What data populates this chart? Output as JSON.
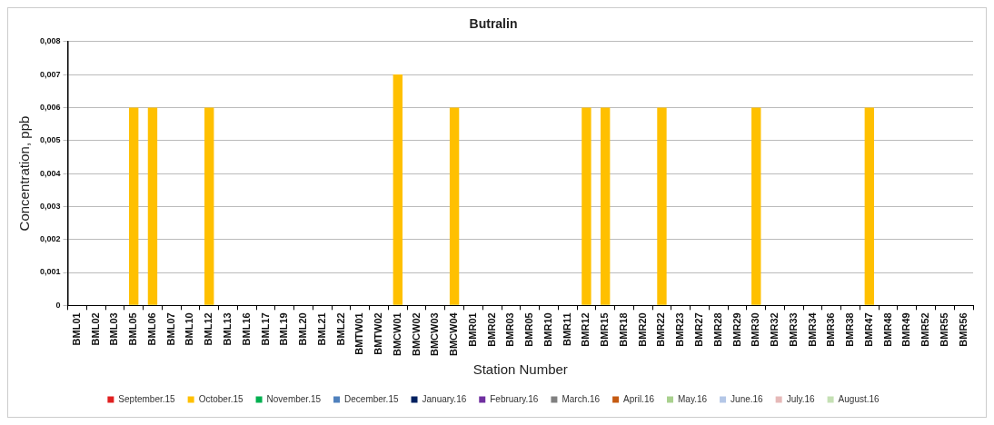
{
  "chart_data": {
    "type": "bar",
    "title": "Butralin",
    "xlabel": "Station Number",
    "ylabel": "Concentration, ppb",
    "categories": [
      "BML01",
      "BML02",
      "BML03",
      "BML05",
      "BML06",
      "BML07",
      "BML10",
      "BML12",
      "BML13",
      "BML16",
      "BML17",
      "BML19",
      "BML20",
      "BML21",
      "BML22",
      "BMTW01",
      "BMTW02",
      "BMCW01",
      "BMCW02",
      "BMCW03",
      "BMCW04",
      "BMR01",
      "BMR02",
      "BMR03",
      "BMR05",
      "BMR10",
      "BMR11",
      "BMR12",
      "BMR15",
      "BMR18",
      "BMR20",
      "BMR22",
      "BMR23",
      "BMR27",
      "BMR28",
      "BMR29",
      "BMR30",
      "BMR32",
      "BMR33",
      "BMR34",
      "BMR36",
      "BMR38",
      "BMR47",
      "BMR48",
      "BMR49",
      "BMR52",
      "BMR55",
      "BMR56"
    ],
    "series": [
      {
        "name": "September.15",
        "color": "#e02020",
        "values": [
          null,
          null,
          null,
          null,
          null,
          null,
          null,
          null,
          null,
          null,
          null,
          null,
          null,
          null,
          null,
          null,
          null,
          null,
          null,
          null,
          null,
          null,
          null,
          null,
          null,
          null,
          null,
          null,
          null,
          null,
          null,
          null,
          null,
          null,
          null,
          null,
          null,
          null,
          null,
          null,
          null,
          null,
          null,
          null,
          null,
          null,
          null,
          null
        ]
      },
      {
        "name": "October.15",
        "color": "#ffc000",
        "values": [
          null,
          null,
          null,
          0.006,
          0.006,
          null,
          null,
          0.006,
          null,
          null,
          null,
          null,
          null,
          null,
          null,
          null,
          null,
          0.007,
          null,
          null,
          0.006,
          null,
          null,
          null,
          null,
          null,
          null,
          0.006,
          0.006,
          null,
          null,
          0.006,
          null,
          null,
          null,
          null,
          0.006,
          null,
          null,
          null,
          null,
          null,
          0.006,
          null,
          null,
          null,
          null,
          null
        ]
      },
      {
        "name": "November.15",
        "color": "#00b050",
        "values": [
          null,
          null,
          null,
          null,
          null,
          null,
          null,
          null,
          null,
          null,
          null,
          null,
          null,
          null,
          null,
          null,
          null,
          null,
          null,
          null,
          null,
          null,
          null,
          null,
          null,
          null,
          null,
          null,
          null,
          null,
          null,
          null,
          null,
          null,
          null,
          null,
          null,
          null,
          null,
          null,
          null,
          null,
          null,
          null,
          null,
          null,
          null,
          null
        ]
      },
      {
        "name": "December.15",
        "color": "#4f81bd",
        "values": [
          null,
          null,
          null,
          null,
          null,
          null,
          null,
          null,
          null,
          null,
          null,
          null,
          null,
          null,
          null,
          null,
          null,
          null,
          null,
          null,
          null,
          null,
          null,
          null,
          null,
          null,
          null,
          null,
          null,
          null,
          null,
          null,
          null,
          null,
          null,
          null,
          null,
          null,
          null,
          null,
          null,
          null,
          null,
          null,
          null,
          null,
          null,
          null
        ]
      },
      {
        "name": "January.16",
        "color": "#002060",
        "values": [
          null,
          null,
          null,
          null,
          null,
          null,
          null,
          null,
          null,
          null,
          null,
          null,
          null,
          null,
          null,
          null,
          null,
          null,
          null,
          null,
          null,
          null,
          null,
          null,
          null,
          null,
          null,
          null,
          null,
          null,
          null,
          null,
          null,
          null,
          null,
          null,
          null,
          null,
          null,
          null,
          null,
          null,
          null,
          null,
          null,
          null,
          null,
          null
        ]
      },
      {
        "name": "February.16",
        "color": "#7030a0",
        "values": [
          null,
          null,
          null,
          null,
          null,
          null,
          null,
          null,
          null,
          null,
          null,
          null,
          null,
          null,
          null,
          null,
          null,
          null,
          null,
          null,
          null,
          null,
          null,
          null,
          null,
          null,
          null,
          null,
          null,
          null,
          null,
          null,
          null,
          null,
          null,
          null,
          null,
          null,
          null,
          null,
          null,
          null,
          null,
          null,
          null,
          null,
          null,
          null
        ]
      },
      {
        "name": "March.16",
        "color": "#808080",
        "values": [
          null,
          null,
          null,
          null,
          null,
          null,
          null,
          null,
          null,
          null,
          null,
          null,
          null,
          null,
          null,
          null,
          null,
          null,
          null,
          null,
          null,
          null,
          null,
          null,
          null,
          null,
          null,
          null,
          null,
          null,
          null,
          null,
          null,
          null,
          null,
          null,
          null,
          null,
          null,
          null,
          null,
          null,
          null,
          null,
          null,
          null,
          null,
          null
        ]
      },
      {
        "name": "April.16",
        "color": "#c55a11",
        "values": [
          null,
          null,
          null,
          null,
          null,
          null,
          null,
          null,
          null,
          null,
          null,
          null,
          null,
          null,
          null,
          null,
          null,
          null,
          null,
          null,
          null,
          null,
          null,
          null,
          null,
          null,
          null,
          null,
          null,
          null,
          null,
          null,
          null,
          null,
          null,
          null,
          null,
          null,
          null,
          null,
          null,
          null,
          null,
          null,
          null,
          null,
          null,
          null
        ]
      },
      {
        "name": "May.16",
        "color": "#a9d18e",
        "values": [
          null,
          null,
          null,
          null,
          null,
          null,
          null,
          null,
          null,
          null,
          null,
          null,
          null,
          null,
          null,
          null,
          null,
          null,
          null,
          null,
          null,
          null,
          null,
          null,
          null,
          null,
          null,
          null,
          null,
          null,
          null,
          null,
          null,
          null,
          null,
          null,
          null,
          null,
          null,
          null,
          null,
          null,
          null,
          null,
          null,
          null,
          null,
          null
        ]
      },
      {
        "name": "June.16",
        "color": "#b4c7e7",
        "values": [
          null,
          null,
          null,
          null,
          null,
          null,
          null,
          null,
          null,
          null,
          null,
          null,
          null,
          null,
          null,
          null,
          null,
          null,
          null,
          null,
          null,
          null,
          null,
          null,
          null,
          null,
          null,
          null,
          null,
          null,
          null,
          null,
          null,
          null,
          null,
          null,
          null,
          null,
          null,
          null,
          null,
          null,
          null,
          null,
          null,
          null,
          null,
          null
        ]
      },
      {
        "name": "July.16",
        "color": "#e6b9b8",
        "values": [
          null,
          null,
          null,
          null,
          null,
          null,
          null,
          null,
          null,
          null,
          null,
          null,
          null,
          null,
          null,
          null,
          null,
          null,
          null,
          null,
          null,
          null,
          null,
          null,
          null,
          null,
          null,
          null,
          null,
          null,
          null,
          null,
          null,
          null,
          null,
          null,
          null,
          null,
          null,
          null,
          null,
          null,
          null,
          null,
          null,
          null,
          null,
          null
        ]
      },
      {
        "name": "August.16",
        "color": "#c5e0b4",
        "values": [
          null,
          null,
          null,
          null,
          null,
          null,
          null,
          null,
          null,
          null,
          null,
          null,
          null,
          null,
          null,
          null,
          null,
          null,
          null,
          null,
          null,
          null,
          null,
          null,
          null,
          null,
          null,
          null,
          null,
          null,
          null,
          null,
          null,
          null,
          null,
          null,
          null,
          null,
          null,
          null,
          null,
          null,
          null,
          null,
          null,
          null,
          null,
          null
        ]
      }
    ],
    "ylim": [
      0,
      0.008
    ],
    "yticks": [
      0,
      {
        "value": 0.001,
        "label": "0,001"
      },
      {
        "value": 0.002,
        "label": "0,002"
      },
      {
        "value": 0.003,
        "label": "0,003"
      },
      {
        "value": 0.004,
        "label": "0,004"
      },
      {
        "value": 0.005,
        "label": "0,005"
      },
      {
        "value": 0.006,
        "label": "0,006"
      },
      {
        "value": 0.007,
        "label": "0,007"
      },
      {
        "value": 0.008,
        "label": "0,008"
      }
    ],
    "grid": "y",
    "legend": "bottom"
  }
}
